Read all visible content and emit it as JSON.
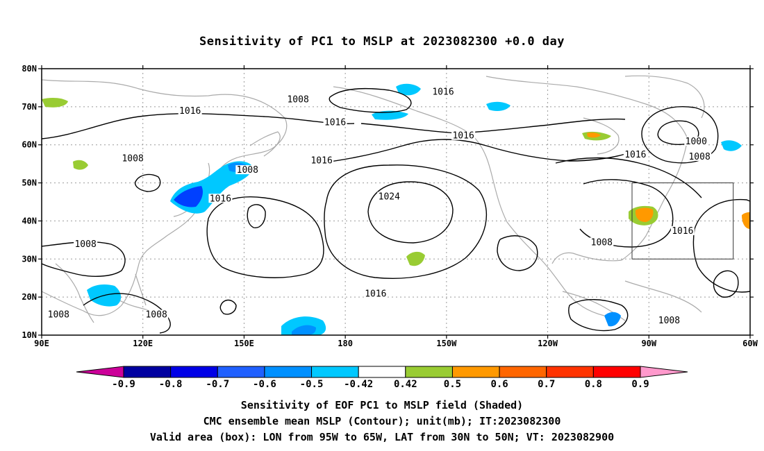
{
  "title": "Sensitivity of PC1 to MSLP at 2023082300 +0.0 day",
  "map": {
    "lon_range": [
      90,
      300
    ],
    "lat_range": [
      10,
      80
    ],
    "lat_ticks": [
      "80N",
      "70N",
      "60N",
      "50N",
      "40N",
      "30N",
      "20N",
      "10N"
    ],
    "lon_ticks": [
      "90E",
      "120E",
      "150E",
      "180",
      "150W",
      "120W",
      "90W",
      "60W"
    ],
    "contour_unit": "mb",
    "contour_labels": [
      {
        "value": "1016",
        "lon": 134,
        "lat": 68.5
      },
      {
        "value": "1008",
        "lon": 166,
        "lat": 71.5
      },
      {
        "value": "1016",
        "lon": 209,
        "lat": 73.5
      },
      {
        "value": "1016",
        "lon": 177,
        "lat": 65.5
      },
      {
        "value": "1016",
        "lon": 215,
        "lat": 62
      },
      {
        "value": "1016",
        "lon": 173,
        "lat": 55.5
      },
      {
        "value": "1008",
        "lon": 117,
        "lat": 56
      },
      {
        "value": "1008",
        "lon": 151,
        "lat": 53
      },
      {
        "value": "1016",
        "lon": 143,
        "lat": 45.5
      },
      {
        "value": "1024",
        "lon": 193,
        "lat": 46
      },
      {
        "value": "1016",
        "lon": 266,
        "lat": 57
      },
      {
        "value": "1000",
        "lon": 284,
        "lat": 60.5
      },
      {
        "value": "1008",
        "lon": 285,
        "lat": 56.5
      },
      {
        "value": "1008",
        "lon": 103,
        "lat": 33.5
      },
      {
        "value": "1008",
        "lon": 256,
        "lat": 34
      },
      {
        "value": "1016",
        "lon": 280,
        "lat": 37
      },
      {
        "value": "1016",
        "lon": 189,
        "lat": 20.5
      },
      {
        "value": "1008",
        "lon": 95,
        "lat": 15
      },
      {
        "value": "1008",
        "lon": 124,
        "lat": 15
      },
      {
        "value": "1008",
        "lon": 276,
        "lat": 13.5
      }
    ],
    "valid_box": {
      "lon_min": 265,
      "lon_max": 295,
      "lat_min": 30,
      "lat_max": 50
    },
    "shading_colors": {
      "neg_strong": "#00c8ff",
      "neg_mid": "#0090ff",
      "neg_dark": "#0040ff",
      "pos_green": "#99cc33",
      "pos_orange": "#ff9900",
      "pos_red": "#ff4400",
      "coast": "#aaaaaa",
      "contour": "#000000"
    }
  },
  "colorbar": {
    "labels": [
      "-0.9",
      "-0.8",
      "-0.7",
      "-0.6",
      "-0.5",
      "-0.42",
      "0.42",
      "0.5",
      "0.6",
      "0.7",
      "0.8",
      "0.9"
    ],
    "colors": [
      "#cc0099",
      "#0000a0",
      "#0000e6",
      "#2060ff",
      "#0090ff",
      "#00c8ff",
      "#ffffff",
      "#99cc33",
      "#ff9900",
      "#ff6600",
      "#ff3300",
      "#ff0000",
      "#ff99cc"
    ]
  },
  "footer": {
    "line1": "Sensitivity of EOF PC1 to MSLP field (Shaded)",
    "line2": "CMC ensemble mean MSLP (Contour); unit(mb); IT:2023082300",
    "line3": "Valid area (box): LON from 95W to 65W, LAT from 30N to 50N; VT: 2023082900"
  }
}
